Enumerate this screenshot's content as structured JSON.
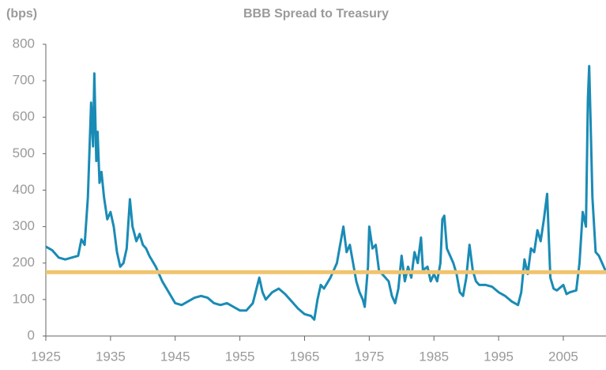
{
  "chart_data": {
    "type": "line",
    "title": "BBB Spread to Treasury",
    "y_label": "(bps)",
    "xlim": [
      1925,
      2011.6
    ],
    "ylim": [
      0,
      800
    ],
    "xticks": [
      1925,
      1935,
      1945,
      1955,
      1965,
      1975,
      1985,
      1995,
      2005
    ],
    "yticks": [
      0,
      100,
      200,
      300,
      400,
      500,
      600,
      700,
      800
    ],
    "reference_line": {
      "value": 175,
      "color": "#f0c46e"
    },
    "series": [
      {
        "color": "#1a8bb5",
        "x": [
          1925,
          1926,
          1927,
          1928,
          1929,
          1930,
          1930.5,
          1931,
          1931.5,
          1932,
          1932.3,
          1932.5,
          1932.8,
          1933,
          1933.3,
          1933.6,
          1934,
          1934.5,
          1935,
          1935.5,
          1936,
          1936.5,
          1937,
          1937.5,
          1938,
          1938.4,
          1939,
          1939.5,
          1940,
          1940.5,
          1941,
          1942,
          1943,
          1944,
          1945,
          1946,
          1947,
          1948,
          1949,
          1950,
          1951,
          1952,
          1953,
          1954,
          1955,
          1956,
          1957,
          1958,
          1958.5,
          1959,
          1960,
          1961,
          1962,
          1963,
          1964,
          1965,
          1966,
          1966.5,
          1967,
          1967.5,
          1968,
          1969,
          1970,
          1970.5,
          1971,
          1971.5,
          1972,
          1972.5,
          1973,
          1973.5,
          1974,
          1974.3,
          1974.8,
          1975,
          1975.5,
          1976,
          1976.5,
          1977,
          1978,
          1978.5,
          1979,
          1979.5,
          1980,
          1980.5,
          1981,
          1981.5,
          1982,
          1982.5,
          1983,
          1983.3,
          1984,
          1984.5,
          1985,
          1985.5,
          1986,
          1986.3,
          1986.6,
          1987,
          1987.5,
          1988,
          1988.5,
          1989,
          1989.5,
          1990,
          1990.5,
          1991,
          1991.5,
          1992,
          1993,
          1994,
          1995,
          1996,
          1997,
          1998,
          1998.5,
          1999,
          1999.5,
          2000,
          2000.5,
          2001,
          2001.5,
          2002,
          2002.5,
          2002.8,
          2003,
          2003.5,
          2004,
          2005,
          2005.5,
          2006,
          2007,
          2007.5,
          2008,
          2008.5,
          2008.8,
          2009,
          2009.2,
          2009.5,
          2010,
          2010.5,
          2011,
          2011.5
        ],
        "values": [
          245,
          235,
          215,
          210,
          215,
          220,
          265,
          250,
          380,
          640,
          520,
          720,
          480,
          560,
          420,
          450,
          380,
          320,
          340,
          300,
          230,
          190,
          200,
          240,
          375,
          300,
          260,
          280,
          250,
          240,
          220,
          190,
          150,
          120,
          90,
          85,
          95,
          105,
          110,
          105,
          90,
          85,
          90,
          80,
          70,
          70,
          90,
          160,
          120,
          100,
          120,
          130,
          115,
          95,
          75,
          60,
          55,
          45,
          100,
          140,
          130,
          160,
          200,
          250,
          300,
          230,
          250,
          200,
          150,
          120,
          100,
          80,
          190,
          300,
          240,
          250,
          180,
          170,
          150,
          110,
          90,
          130,
          220,
          150,
          190,
          160,
          230,
          200,
          270,
          180,
          190,
          150,
          170,
          150,
          200,
          320,
          330,
          240,
          220,
          200,
          170,
          120,
          110,
          160,
          250,
          180,
          150,
          140,
          140,
          135,
          120,
          110,
          95,
          85,
          120,
          210,
          170,
          240,
          230,
          290,
          260,
          320,
          390,
          250,
          160,
          130,
          125,
          140,
          115,
          120,
          125,
          200,
          340,
          300,
          650,
          740,
          600,
          380,
          230,
          220,
          200,
          180
        ]
      }
    ]
  }
}
